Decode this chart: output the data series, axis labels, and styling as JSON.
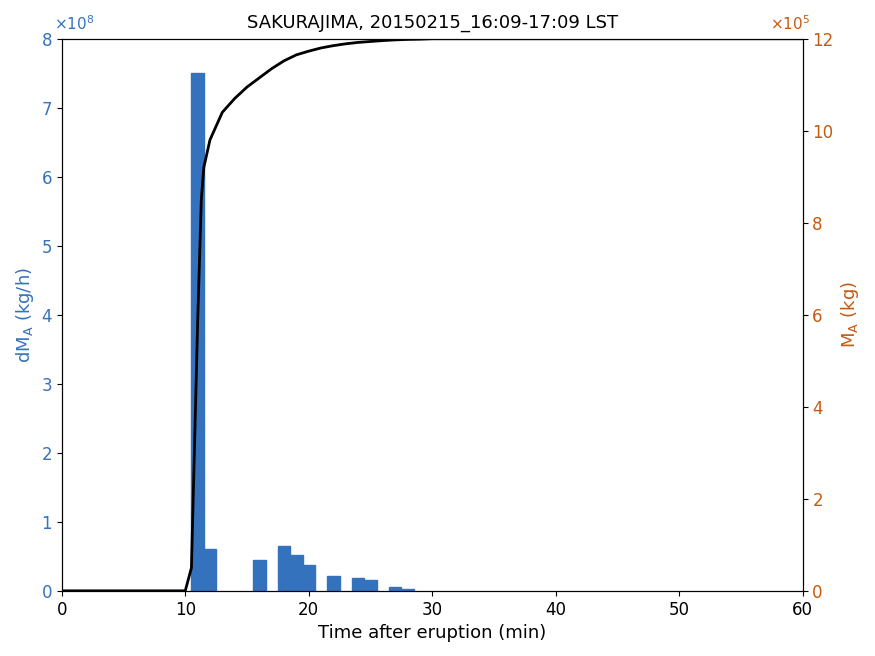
{
  "title": "SAKURAJIMA, 20150215_16:09-17:09 LST",
  "xlabel": "Time after eruption (min)",
  "ylabel_left": "dM_A (kg/h)",
  "ylabel_right": "M_A (kg)",
  "bar_color": "#3472bd",
  "line_color": "#000000",
  "left_color": "#3472bd",
  "right_color": "#c55a11",
  "bar_centers": [
    11,
    12,
    16,
    18,
    19,
    20,
    22,
    24,
    25,
    27,
    28
  ],
  "bar_heights": [
    750000000.0,
    60000000.0,
    45000000.0,
    65000000.0,
    52000000.0,
    38000000.0,
    22000000.0,
    18000000.0,
    15000000.0,
    5000000.0,
    3000000.0
  ],
  "bar_width": 1.0,
  "xlim": [
    0,
    60
  ],
  "ylim_left": [
    0,
    800000000.0
  ],
  "ylim_right": [
    0,
    1200000.0
  ],
  "xticks": [
    0,
    10,
    20,
    30,
    40,
    50,
    60
  ],
  "yticks_left": [
    0,
    100000000.0,
    200000000.0,
    300000000.0,
    400000000.0,
    500000000.0,
    600000000.0,
    700000000.0,
    800000000.0
  ],
  "yticks_right": [
    0,
    200000.0,
    400000.0,
    600000.0,
    800000.0,
    1000000.0,
    1200000.0
  ],
  "cumulative_x": [
    0,
    10.0,
    10.5,
    11.0,
    11.3,
    11.5,
    12.0,
    12.5,
    13.0,
    14.0,
    15.0,
    16.0,
    17.0,
    18.0,
    19.0,
    20.0,
    21.0,
    22.0,
    23.0,
    24.0,
    25.0,
    26.0,
    27.0,
    28.0,
    29.0,
    30.0,
    35.0,
    40.0,
    50.0,
    60.0
  ],
  "cumulative_y": [
    0,
    0,
    50000.0,
    580000.0,
    850000.0,
    920000.0,
    980000.0,
    1010000.0,
    1040000.0,
    1070000.0,
    1095000.0,
    1115000.0,
    1135000.0,
    1152000.0,
    1165000.0,
    1173000.0,
    1180000.0,
    1185000.0,
    1189000.0,
    1192000.0,
    1194000.0,
    1196000.0,
    1197500.0,
    1198500.0,
    1199000.0,
    1200000.0,
    1200000.0,
    1200000.0,
    1200000.0,
    1200000.0
  ],
  "figsize": [
    8.75,
    6.56
  ],
  "dpi": 100
}
